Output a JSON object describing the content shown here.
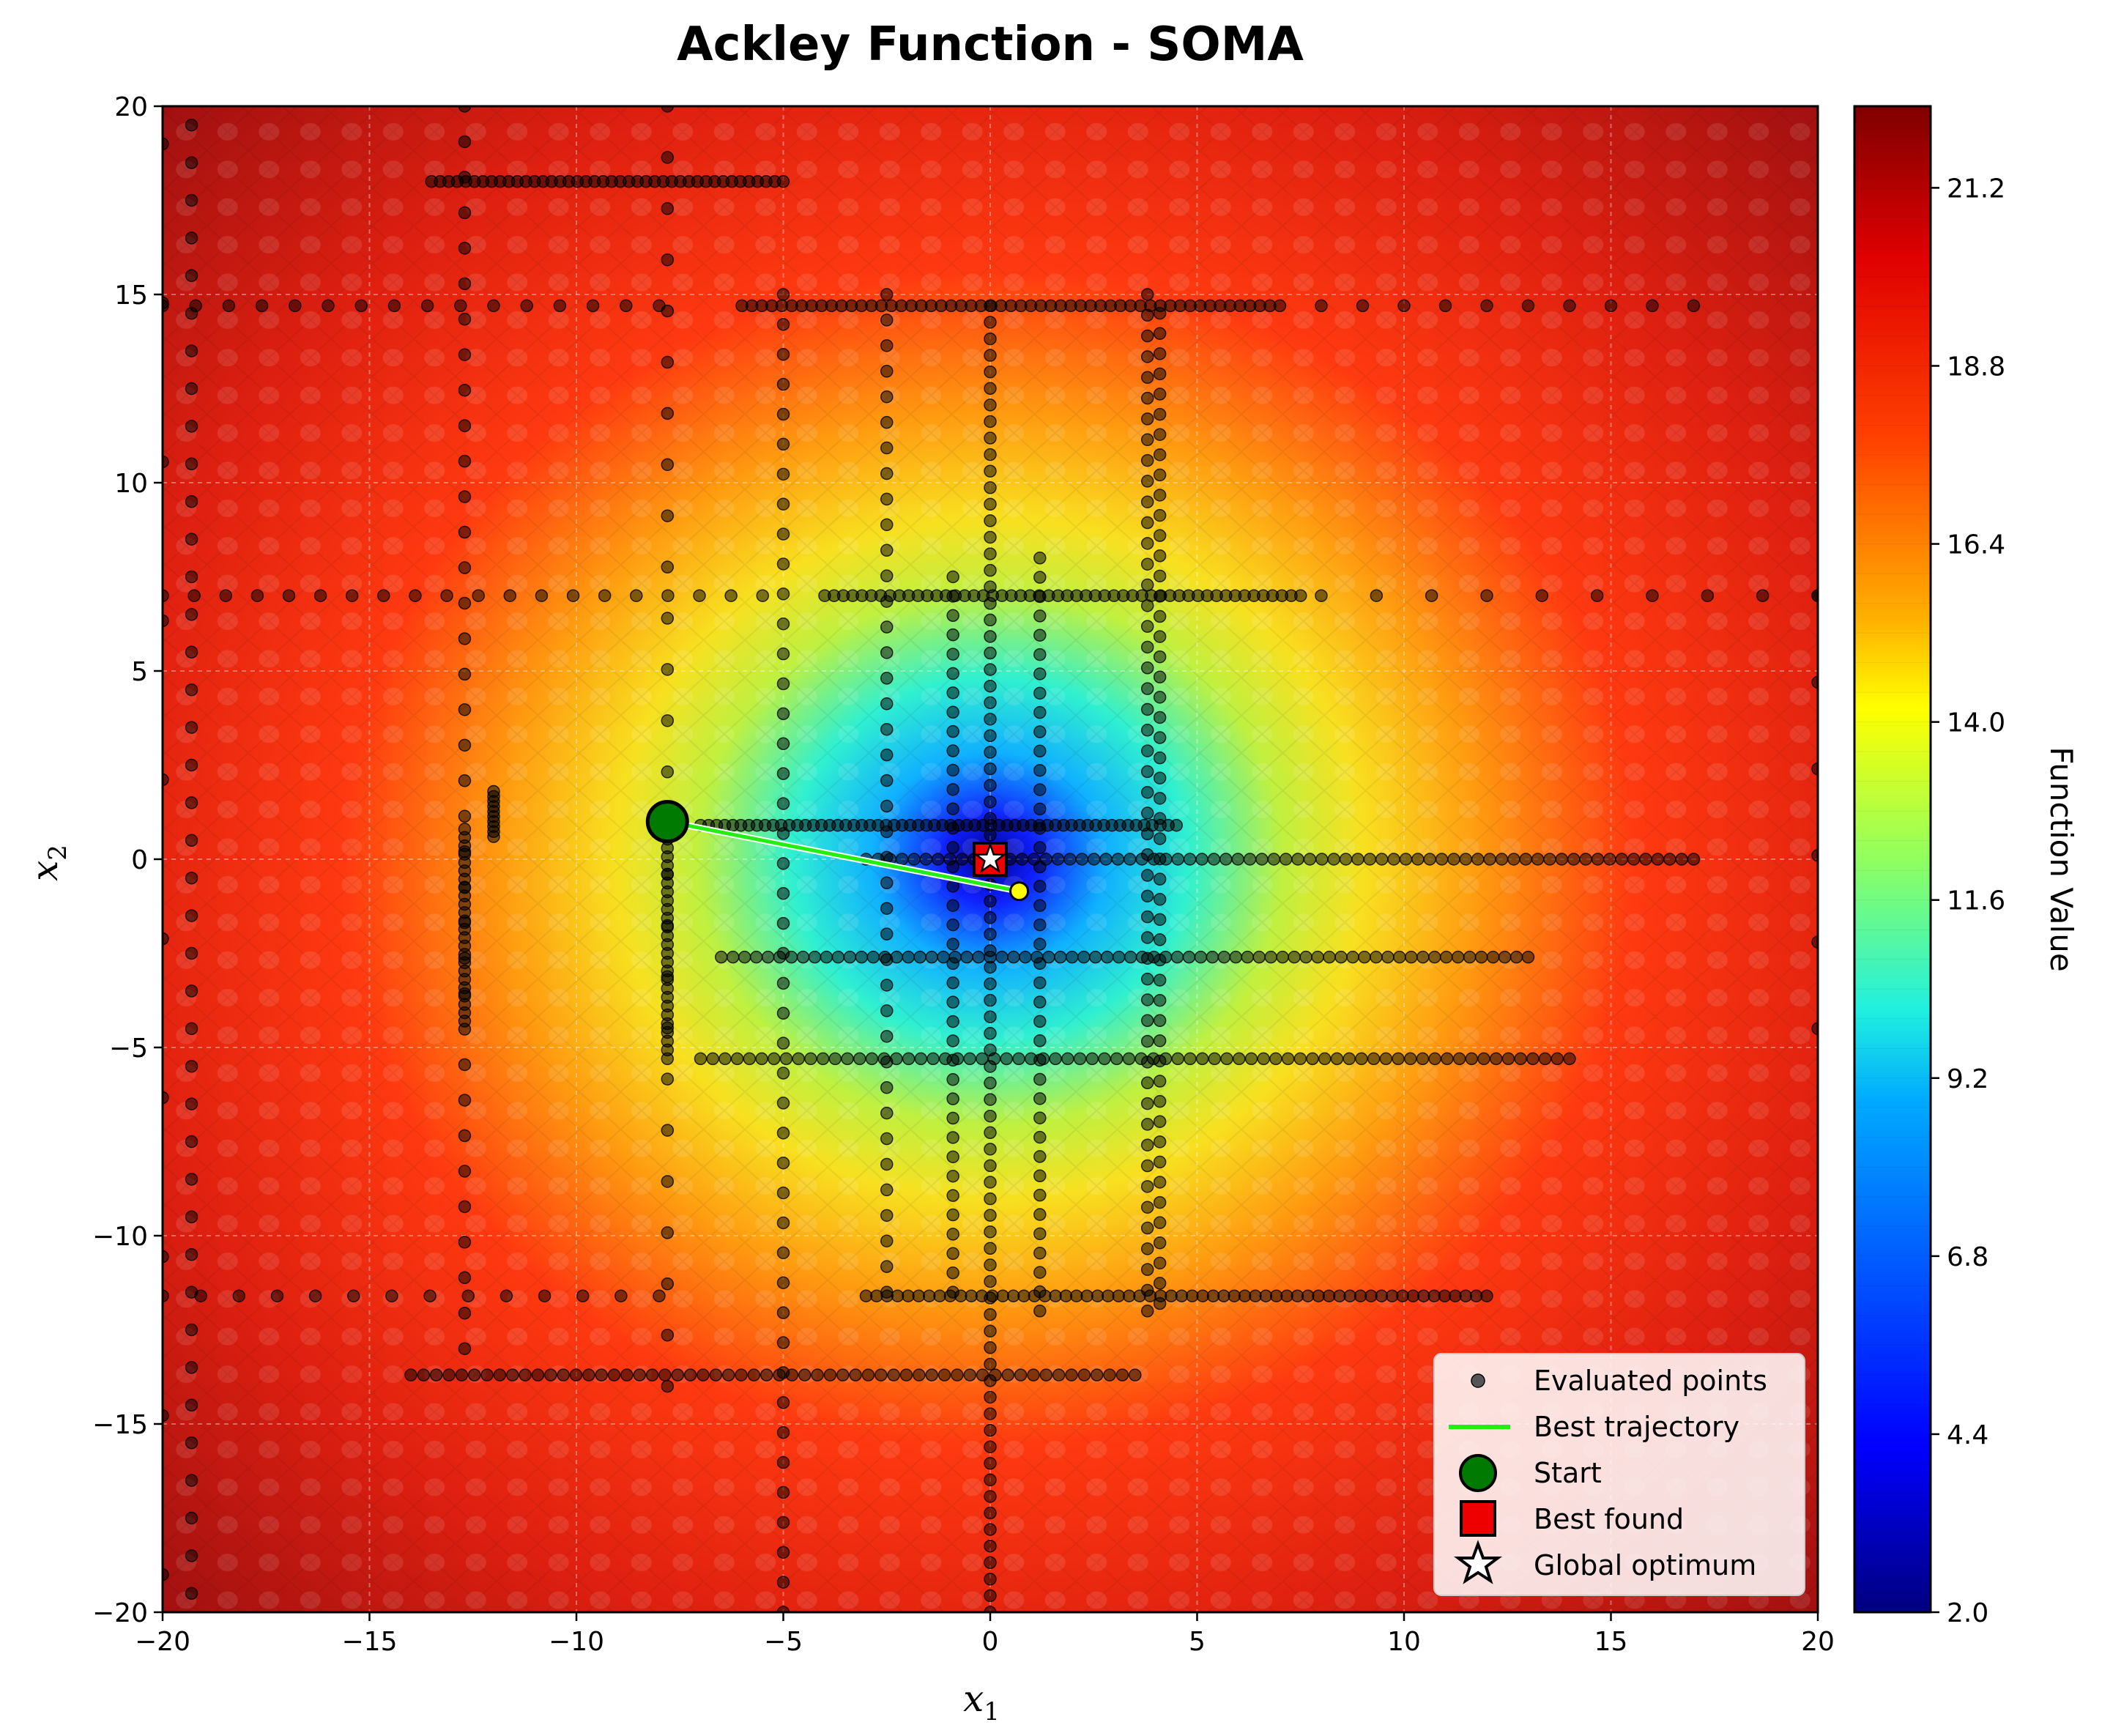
{
  "chart_data": {
    "type": "contour",
    "title": "Ackley Function - SOMA",
    "xlabel_base": "x",
    "xlabel_sub": "1",
    "ylabel_base": "x",
    "ylabel_sub": "2",
    "xlim": [
      -20,
      20
    ],
    "ylim": [
      -20,
      20
    ],
    "xticks": [
      -20,
      -15,
      -10,
      -5,
      0,
      5,
      10,
      15,
      20
    ],
    "yticks": [
      -20,
      -15,
      -10,
      -5,
      0,
      5,
      10,
      15,
      20
    ],
    "grid": true,
    "colormap": "jet",
    "colorbar": {
      "label": "Function Value",
      "range": [
        2.0,
        22.3
      ],
      "ticks": [
        2.0,
        4.4,
        6.8,
        9.2,
        11.6,
        14.0,
        16.4,
        18.8,
        21.2
      ],
      "tick_labels": [
        "2.0",
        "4.4",
        "6.8",
        "9.2",
        "11.6",
        "14.0",
        "16.4",
        "18.8",
        "21.2"
      ]
    },
    "legend": {
      "position": "lower right",
      "entries": [
        "Evaluated points",
        "Best trajectory",
        "Start",
        "Best found",
        "Global optimum"
      ]
    },
    "series": [
      {
        "name": "Best trajectory",
        "type": "line",
        "color": "#22ee11",
        "points": [
          [
            -7.8,
            1.0
          ],
          [
            0.7,
            -0.85
          ]
        ]
      },
      {
        "name": "Start",
        "type": "marker",
        "color": "#007a00",
        "point": [
          -7.8,
          1.0
        ]
      },
      {
        "name": "Best found",
        "type": "marker",
        "color": "#ee0000",
        "point": [
          0.0,
          0.0
        ]
      },
      {
        "name": "Global optimum",
        "type": "marker",
        "color": "#ffffff",
        "point": [
          0.0,
          0.0
        ]
      },
      {
        "name": "Evaluated points",
        "type": "scatter",
        "color": "#000000",
        "segments": [
          {
            "from": [
              -13.5,
              18.0
            ],
            "to": [
              -5.0,
              18.0
            ],
            "n": 42
          },
          {
            "from": [
              -6.0,
              14.7
            ],
            "to": [
              7.0,
              14.7
            ],
            "n": 55
          },
          {
            "from": [
              -4.0,
              7.0
            ],
            "to": [
              7.5,
              7.0
            ],
            "n": 52
          },
          {
            "from": [
              -7.0,
              0.9
            ],
            "to": [
              4.5,
              0.9
            ],
            "n": 60
          },
          {
            "from": [
              -3.0,
              0.0
            ],
            "to": [
              17.0,
              0.0
            ],
            "n": 70
          },
          {
            "from": [
              -6.5,
              -2.6
            ],
            "to": [
              13.0,
              -2.6
            ],
            "n": 70
          },
          {
            "from": [
              -7.0,
              -5.3
            ],
            "to": [
              14.0,
              -5.3
            ],
            "n": 72
          },
          {
            "from": [
              -3.0,
              -11.6
            ],
            "to": [
              12.0,
              -11.6
            ],
            "n": 60
          },
          {
            "from": [
              -14.0,
              -13.7
            ],
            "to": [
              3.5,
              -13.7
            ],
            "n": 58
          },
          {
            "from": [
              -7.8,
              1.0
            ],
            "to": [
              -7.8,
              -5.3
            ],
            "n": 28
          },
          {
            "from": [
              -12.7,
              0.8
            ],
            "to": [
              -12.7,
              -4.3
            ],
            "n": 24
          },
          {
            "from": [
              -12.0,
              1.8
            ],
            "to": [
              -12.0,
              0.6
            ],
            "n": 10
          },
          {
            "from": [
              0.0,
              14.7
            ],
            "to": [
              0.0,
              -20.0
            ],
            "n": 80
          },
          {
            "from": [
              -0.9,
              7.5
            ],
            "to": [
              -0.9,
              -11.5
            ],
            "n": 38
          },
          {
            "from": [
              1.2,
              8.0
            ],
            "to": [
              1.2,
              -12.0
            ],
            "n": 40
          },
          {
            "from": [
              3.8,
              15.0
            ],
            "to": [
              3.8,
              -12.0
            ],
            "n": 50
          },
          {
            "from": [
              4.1,
              14.5
            ],
            "to": [
              4.1,
              -11.8
            ],
            "n": 50
          },
          {
            "from": [
              -5.0,
              15.0
            ],
            "to": [
              -5.0,
              -20.0
            ],
            "n": 45
          },
          {
            "from": [
              -2.5,
              15.0
            ],
            "to": [
              -2.5,
              -11.5
            ],
            "n": 40
          },
          {
            "from": [
              -19.3,
              19.5
            ],
            "to": [
              -19.3,
              -19.5
            ],
            "n": 40
          },
          {
            "from": [
              -12.7,
              20.0
            ],
            "to": [
              -12.7,
              -13.0
            ],
            "n": 36
          },
          {
            "from": [
              -7.8,
              20.0
            ],
            "to": [
              -7.8,
              -14.0
            ],
            "n": 26
          },
          {
            "from": [
              -20.0,
              19.0
            ],
            "to": [
              -20.0,
              -19.0
            ],
            "n": 10
          },
          {
            "from": [
              20.0,
              7.0
            ],
            "to": [
              20.0,
              -4.5
            ],
            "n": 6
          },
          {
            "from": [
              -20.0,
              14.7
            ],
            "to": [
              -8.0,
              14.7
            ],
            "n": 16
          },
          {
            "from": [
              -20.0,
              7.0
            ],
            "to": [
              -5.5,
              7.0
            ],
            "n": 20
          },
          {
            "from": [
              -20.0,
              -11.6
            ],
            "to": [
              -8.0,
              -11.6
            ],
            "n": 14
          },
          {
            "from": [
              8.0,
              7.0
            ],
            "to": [
              20.0,
              7.0
            ],
            "n": 10
          },
          {
            "from": [
              8.0,
              14.7
            ],
            "to": [
              17.0,
              14.7
            ],
            "n": 10
          }
        ]
      }
    ]
  }
}
